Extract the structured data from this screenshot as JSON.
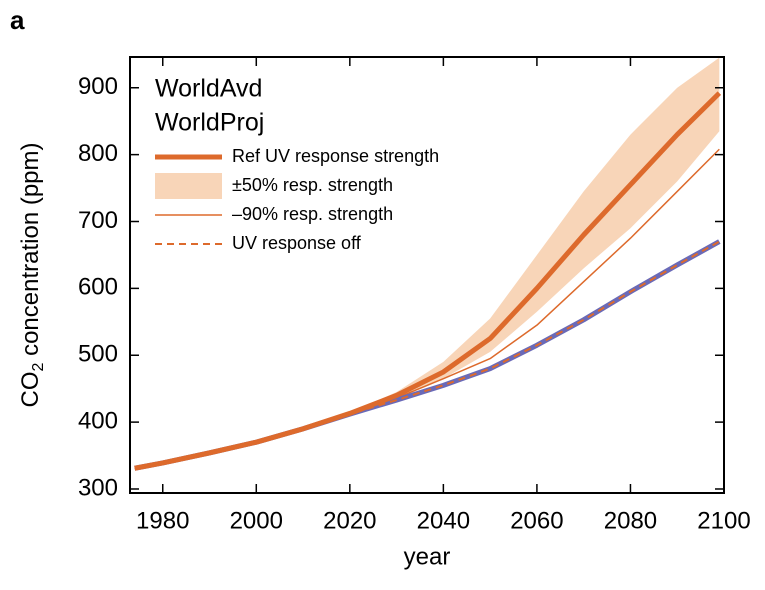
{
  "chart_data": {
    "type": "line",
    "panel_label": "a",
    "x_label": "year",
    "y_label": [
      "CO",
      "2",
      " concentration (ppm)"
    ],
    "x": [
      1974,
      1980,
      1990,
      2000,
      2010,
      2020,
      2030,
      2040,
      2050,
      2060,
      2070,
      2080,
      2090,
      2099
    ],
    "xlim": [
      1973,
      2100
    ],
    "xticks": [
      1980,
      2000,
      2020,
      2040,
      2060,
      2080,
      2100
    ],
    "ylim": [
      294,
      946
    ],
    "yticks": [
      300,
      400,
      500,
      600,
      700,
      800,
      900
    ],
    "grid": false,
    "scenario_label": {
      "text": "WorldAvd",
      "color": "#dd6a2c"
    },
    "series": [
      {
        "name": "±50% resp. strength",
        "style": "band",
        "color": "#f8d5b8",
        "lower": [
          331,
          339,
          354,
          370,
          390,
          412,
          436,
          465,
          505,
          565,
          630,
          690,
          760,
          835
        ],
        "upper": [
          331,
          339,
          354,
          370,
          390,
          414,
          445,
          490,
          555,
          650,
          745,
          830,
          900,
          945
        ]
      },
      {
        "name": "Ref UV response strength",
        "style": "thick",
        "color": "#dd6a2c",
        "values": [
          331,
          339,
          354,
          370,
          390,
          413,
          440,
          475,
          525,
          600,
          680,
          755,
          830,
          892
        ]
      },
      {
        "name": "–90% resp. strength",
        "style": "thin",
        "color": "#dd6a2c",
        "values": [
          331,
          339,
          354,
          370,
          390,
          412,
          436,
          465,
          495,
          545,
          610,
          675,
          745,
          808
        ]
      },
      {
        "name": "WorldProj",
        "style": "scenario",
        "color": "#6a6ab8",
        "values": [
          331,
          339,
          354,
          370,
          390,
          412,
          433,
          455,
          480,
          515,
          553,
          595,
          635,
          670
        ]
      },
      {
        "name": "UV response off",
        "style": "dashed",
        "color": "#dd6a2c",
        "values": [
          331,
          339,
          354,
          370,
          390,
          412,
          433,
          455,
          480,
          515,
          553,
          595,
          635,
          670
        ]
      }
    ]
  }
}
